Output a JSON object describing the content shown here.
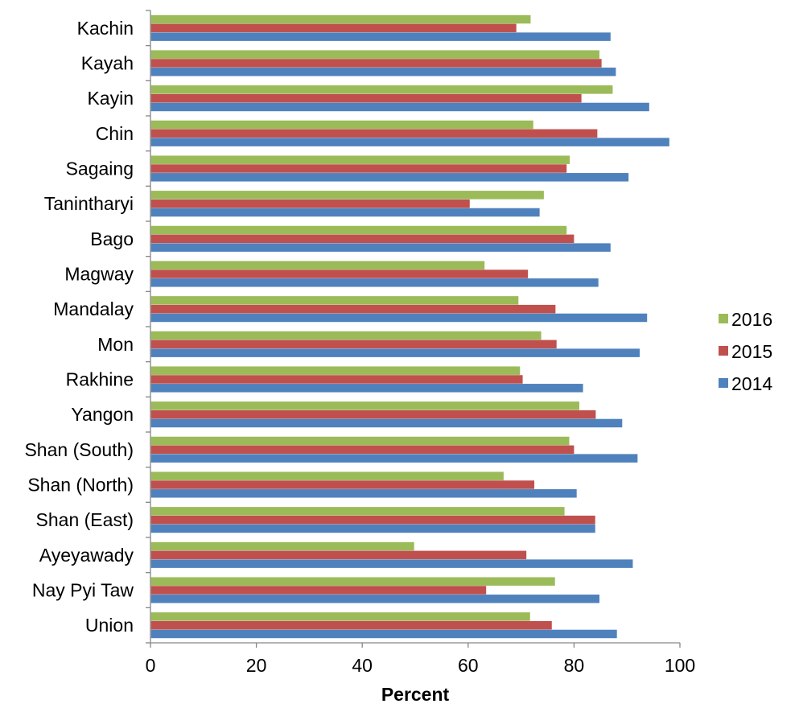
{
  "chart_data": {
    "type": "bar",
    "orientation": "horizontal",
    "categories": [
      "Kachin",
      "Kayah",
      "Kayin",
      "Chin",
      "Sagaing",
      "Tanintharyi",
      "Bago",
      "Magway",
      "Mandalay",
      "Mon",
      "Rakhine",
      "Yangon",
      "Shan (South)",
      "Shan (North)",
      "Shan (East)",
      "Ayeyawady",
      "Nay Pyi Taw",
      "Union"
    ],
    "series": [
      {
        "name": "2016",
        "color": "#9bbb59",
        "values": [
          71.8,
          84.8,
          87.3,
          72.3,
          79.2,
          74.3,
          78.6,
          63.1,
          69.5,
          73.8,
          69.8,
          81.0,
          79.1,
          66.7,
          78.2,
          49.8,
          76.4,
          71.7
        ]
      },
      {
        "name": "2015",
        "color": "#c0504d",
        "values": [
          69.1,
          85.2,
          81.4,
          84.4,
          78.6,
          60.3,
          80.0,
          71.3,
          76.5,
          76.7,
          70.3,
          84.1,
          80.0,
          72.5,
          84.0,
          71.0,
          63.4,
          75.8
        ]
      },
      {
        "name": "2014",
        "color": "#4f81bd",
        "values": [
          86.9,
          87.9,
          94.2,
          98.0,
          90.3,
          73.5,
          86.9,
          84.6,
          93.8,
          92.4,
          81.7,
          89.1,
          92.0,
          80.5,
          84.0,
          91.1,
          84.8,
          88.1
        ]
      }
    ],
    "xlabel": "Percent",
    "ylabel": "",
    "title": "",
    "xlim": [
      0,
      100
    ],
    "x_ticks": [
      "0",
      "20",
      "40",
      "60",
      "80",
      "100"
    ],
    "legend": {
      "position": "right",
      "entries": [
        "2016",
        "2015",
        "2014"
      ]
    },
    "grid": false
  }
}
